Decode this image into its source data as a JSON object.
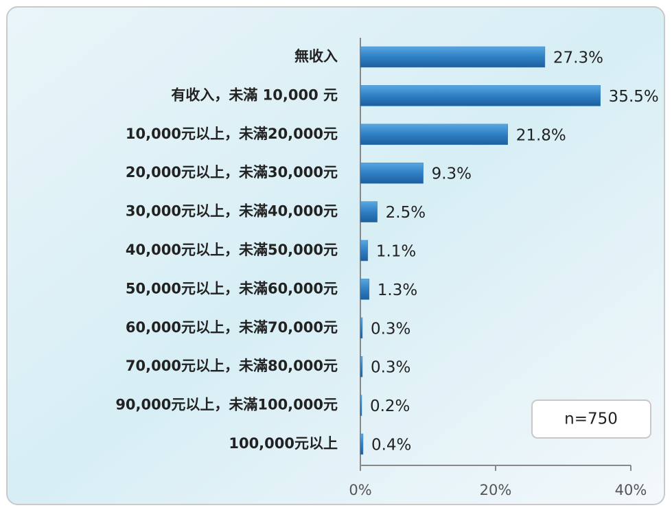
{
  "chart_data": {
    "type": "barh",
    "categories": [
      "無收入",
      "有收入，未滿 10,000 元",
      "10,000元以上，未滿20,000元",
      "20,000元以上，未滿30,000元",
      "30,000元以上，未滿40,000元",
      "40,000元以上，未滿50,000元",
      "50,000元以上，未滿60,000元",
      "60,000元以上，未滿70,000元",
      "70,000元以上，未滿80,000元",
      "90,000元以上，未滿100,000元",
      "100,000元以上"
    ],
    "values": [
      27.3,
      35.5,
      21.8,
      9.3,
      2.5,
      1.1,
      1.3,
      0.3,
      0.3,
      0.2,
      0.4
    ],
    "value_labels": [
      "27.3%",
      "35.5%",
      "21.8%",
      "9.3%",
      "2.5%",
      "1.1%",
      "1.3%",
      "0.3%",
      "0.3%",
      "0.2%",
      "0.4%"
    ],
    "color": "#2f7fc4",
    "xlim": [
      0,
      40
    ],
    "xticks": [
      {
        "value": 0,
        "label": "0%"
      },
      {
        "value": 20,
        "label": "20%"
      },
      {
        "value": 40,
        "label": "40%"
      }
    ],
    "annotation": "n=750"
  }
}
